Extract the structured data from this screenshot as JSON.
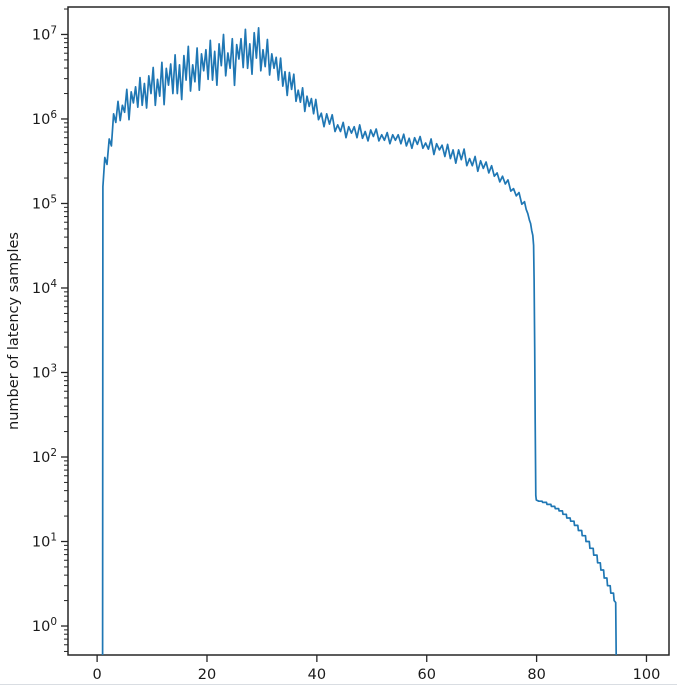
{
  "chart_data": {
    "type": "line",
    "title": "",
    "xlabel": "",
    "ylabel": "number of latency samples",
    "x_ticks": [
      0,
      20,
      40,
      60,
      80,
      100
    ],
    "y_scale": "log",
    "y_tick_exponents": [
      0,
      1,
      2,
      3,
      4,
      5,
      6,
      7
    ],
    "xlim": [
      -5.3,
      104.1
    ],
    "ylim_log10": [
      -0.343,
      7.325
    ],
    "legend": "none",
    "grid": "off",
    "line_color": "#1f77b4",
    "points": [
      [
        0.99,
        0.4
      ],
      [
        1.05,
        158000
      ],
      [
        1.4,
        350000
      ],
      [
        1.8,
        290000
      ],
      [
        2.2,
        580000
      ],
      [
        2.6,
        480000
      ],
      [
        3,
        1150000
      ],
      [
        3.4,
        910000
      ],
      [
        3.8,
        1620000
      ],
      [
        4.2,
        960000
      ],
      [
        4.6,
        1450000
      ],
      [
        5,
        1200000
      ],
      [
        5.4,
        2240000
      ],
      [
        5.8,
        980000
      ],
      [
        6.2,
        2090000
      ],
      [
        6.6,
        1550000
      ],
      [
        7,
        2400000
      ],
      [
        7.4,
        1380000
      ],
      [
        7.8,
        3090000
      ],
      [
        8.2,
        1450000
      ],
      [
        8.6,
        2630000
      ],
      [
        9,
        1350000
      ],
      [
        9.4,
        3240000
      ],
      [
        9.8,
        2000000
      ],
      [
        10.2,
        4070000
      ],
      [
        10.6,
        1450000
      ],
      [
        11,
        2950000
      ],
      [
        11.4,
        1860000
      ],
      [
        11.8,
        4680000
      ],
      [
        12.2,
        1480000
      ],
      [
        12.6,
        3980000
      ],
      [
        13,
        2510000
      ],
      [
        13.4,
        4470000
      ],
      [
        13.8,
        2000000
      ],
      [
        14.2,
        5750000
      ],
      [
        14.6,
        2000000
      ],
      [
        15,
        4370000
      ],
      [
        15.4,
        1700000
      ],
      [
        15.8,
        5620000
      ],
      [
        16.2,
        2880000
      ],
      [
        16.6,
        7240000
      ],
      [
        17,
        2140000
      ],
      [
        17.4,
        4370000
      ],
      [
        17.8,
        2750000
      ],
      [
        18.2,
        6920000
      ],
      [
        18.6,
        2190000
      ],
      [
        19,
        5890000
      ],
      [
        19.4,
        3720000
      ],
      [
        19.8,
        6610000
      ],
      [
        20.2,
        2950000
      ],
      [
        20.6,
        8510000
      ],
      [
        21,
        2880000
      ],
      [
        21.4,
        6310000
      ],
      [
        21.8,
        2510000
      ],
      [
        22.2,
        7760000
      ],
      [
        22.6,
        4270000
      ],
      [
        23,
        10000000
      ],
      [
        23.4,
        3240000
      ],
      [
        23.8,
        6030000
      ],
      [
        24.2,
        3980000
      ],
      [
        24.6,
        8910000
      ],
      [
        25,
        2500000
      ],
      [
        25.4,
        7590000
      ],
      [
        25.8,
        5130000
      ],
      [
        26.2,
        8900000
      ],
      [
        26.6,
        4070000
      ],
      [
        27,
        11500000
      ],
      [
        27.4,
        3980000
      ],
      [
        27.8,
        7760000
      ],
      [
        28.2,
        3390000
      ],
      [
        28.6,
        10500000
      ],
      [
        29,
        5250000
      ],
      [
        29.4,
        12000000
      ],
      [
        29.8,
        3720000
      ],
      [
        30.2,
        6610000
      ],
      [
        30.6,
        4170000
      ],
      [
        31,
        8710000
      ],
      [
        31.4,
        3310000
      ],
      [
        31.8,
        5890000
      ],
      [
        32.2,
        3980000
      ],
      [
        32.6,
        5370000
      ],
      [
        33,
        2880000
      ],
      [
        33.4,
        5250000
      ],
      [
        33.8,
        2450000
      ],
      [
        34.2,
        3630000
      ],
      [
        34.6,
        1900000
      ],
      [
        35,
        3550000
      ],
      [
        35.4,
        2240000
      ],
      [
        35.8,
        3390000
      ],
      [
        36.2,
        1620000
      ],
      [
        36.6,
        2190000
      ],
      [
        37,
        1580000
      ],
      [
        37.4,
        2340000
      ],
      [
        37.8,
        1230000
      ],
      [
        38.2,
        1860000
      ],
      [
        38.6,
        1410000
      ],
      [
        39,
        1740000
      ],
      [
        39.4,
        1150000
      ],
      [
        39.8,
        1700000
      ],
      [
        40.3,
        980000
      ],
      [
        40.8,
        1170000
      ],
      [
        41.3,
        810000
      ],
      [
        41.8,
        1150000
      ],
      [
        42.3,
        870000
      ],
      [
        42.8,
        1120000
      ],
      [
        43.3,
        710000
      ],
      [
        43.8,
        850000
      ],
      [
        44.3,
        710000
      ],
      [
        44.8,
        910000
      ],
      [
        45.3,
        600000
      ],
      [
        45.8,
        810000
      ],
      [
        46.3,
        680000
      ],
      [
        46.8,
        810000
      ],
      [
        47.3,
        600000
      ],
      [
        47.8,
        850000
      ],
      [
        48.3,
        590000
      ],
      [
        48.8,
        710000
      ],
      [
        49.3,
        550000
      ],
      [
        49.8,
        740000
      ],
      [
        50.3,
        620000
      ],
      [
        50.8,
        760000
      ],
      [
        51.3,
        550000
      ],
      [
        51.8,
        650000
      ],
      [
        52.3,
        560000
      ],
      [
        52.8,
        690000
      ],
      [
        53.3,
        510000
      ],
      [
        53.8,
        650000
      ],
      [
        54.3,
        560000
      ],
      [
        54.8,
        650000
      ],
      [
        55.3,
        510000
      ],
      [
        55.8,
        660000
      ],
      [
        56.3,
        480000
      ],
      [
        56.8,
        590000
      ],
      [
        57.3,
        450000
      ],
      [
        57.8,
        600000
      ],
      [
        58.3,
        500000
      ],
      [
        58.8,
        620000
      ],
      [
        59.3,
        450000
      ],
      [
        59.8,
        520000
      ],
      [
        60.3,
        440000
      ],
      [
        60.8,
        580000
      ],
      [
        61.3,
        380000
      ],
      [
        61.8,
        510000
      ],
      [
        62.3,
        430000
      ],
      [
        62.8,
        490000
      ],
      [
        63.3,
        360000
      ],
      [
        63.8,
        500000
      ],
      [
        64.3,
        340000
      ],
      [
        64.8,
        430000
      ],
      [
        65.3,
        300000
      ],
      [
        65.8,
        430000
      ],
      [
        66.3,
        330000
      ],
      [
        66.8,
        440000
      ],
      [
        67.3,
        280000
      ],
      [
        67.8,
        340000
      ],
      [
        68.3,
        280000
      ],
      [
        68.8,
        360000
      ],
      [
        69.3,
        240000
      ],
      [
        69.8,
        320000
      ],
      [
        70.3,
        260000
      ],
      [
        70.8,
        310000
      ],
      [
        71.3,
        230000
      ],
      [
        71.8,
        280000
      ],
      [
        72.3,
        210000
      ],
      [
        72.8,
        230000
      ],
      [
        73.3,
        180000
      ],
      [
        73.8,
        210000
      ],
      [
        74.3,
        170000
      ],
      [
        74.8,
        190000
      ],
      [
        75.3,
        140000
      ],
      [
        75.8,
        150000
      ],
      [
        76.3,
        123000
      ],
      [
        76.8,
        135000
      ],
      [
        77.3,
        98000
      ],
      [
        77.8,
        105000
      ],
      [
        78.1,
        85000
      ],
      [
        78.4,
        76000
      ],
      [
        78.7,
        63000
      ],
      [
        78.9,
        58000
      ],
      [
        79.1,
        48000
      ],
      [
        79.3,
        42000
      ],
      [
        79.45,
        32000
      ],
      [
        79.55,
        12600
      ],
      [
        79.65,
        2000
      ],
      [
        79.75,
        250
      ],
      [
        79.85,
        35
      ],
      [
        79.95,
        31
      ],
      [
        80.4,
        30
      ],
      [
        81,
        30
      ],
      [
        81.1,
        29
      ],
      [
        81.8,
        29
      ],
      [
        81.9,
        27.5
      ],
      [
        82.6,
        27.5
      ],
      [
        82.7,
        26
      ],
      [
        83.3,
        26
      ],
      [
        83.4,
        24.5
      ],
      [
        84,
        24.5
      ],
      [
        84.1,
        23
      ],
      [
        84.7,
        23
      ],
      [
        84.8,
        21
      ],
      [
        85.4,
        21
      ],
      [
        85.5,
        19
      ],
      [
        86.1,
        19
      ],
      [
        86.2,
        17.4
      ],
      [
        86.8,
        17.4
      ],
      [
        86.9,
        15.5
      ],
      [
        87.5,
        15.5
      ],
      [
        87.6,
        13.5
      ],
      [
        88.2,
        13.5
      ],
      [
        88.3,
        11.7
      ],
      [
        88.9,
        11.7
      ],
      [
        89,
        10
      ],
      [
        89.6,
        10
      ],
      [
        89.7,
        8.3
      ],
      [
        90.3,
        8.3
      ],
      [
        90.4,
        6.9
      ],
      [
        91,
        6.9
      ],
      [
        91.1,
        5.6
      ],
      [
        91.6,
        5.6
      ],
      [
        91.7,
        4.6
      ],
      [
        92.2,
        4.6
      ],
      [
        92.3,
        3.7
      ],
      [
        92.8,
        3.7
      ],
      [
        92.9,
        3
      ],
      [
        93.4,
        3
      ],
      [
        93.5,
        2.45
      ],
      [
        94,
        2.45
      ],
      [
        94.1,
        2
      ],
      [
        94.4,
        1.9
      ],
      [
        94.5,
        0.32
      ]
    ]
  },
  "colors": {
    "line": "#1f77b4",
    "axis": "#262626",
    "tick_label": "#1a1a1a",
    "bottom_rule": "#d9dde2"
  }
}
